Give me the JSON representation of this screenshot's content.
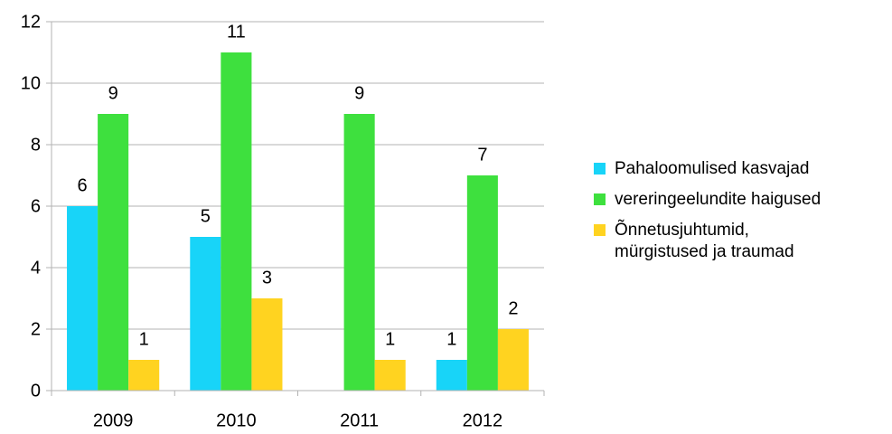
{
  "chart_data": {
    "type": "bar",
    "categories": [
      "2009",
      "2010",
      "2011",
      "2012"
    ],
    "series": [
      {
        "name": "Pahaloomulised kasvajad",
        "color": "#18d4f8",
        "values": [
          6,
          5,
          null,
          1
        ]
      },
      {
        "name": "vereringeelundite haigused",
        "color": "#3ee03e",
        "values": [
          9,
          11,
          9,
          7
        ]
      },
      {
        "name": "Õnnetusjuhtumid, mürgistused ja traumad",
        "color": "#ffd320",
        "values": [
          1,
          3,
          1,
          2
        ]
      }
    ],
    "ylim": [
      0,
      12
    ],
    "yticks": [
      0,
      2,
      4,
      6,
      8,
      10,
      12
    ],
    "grid": true,
    "legend": "right"
  }
}
